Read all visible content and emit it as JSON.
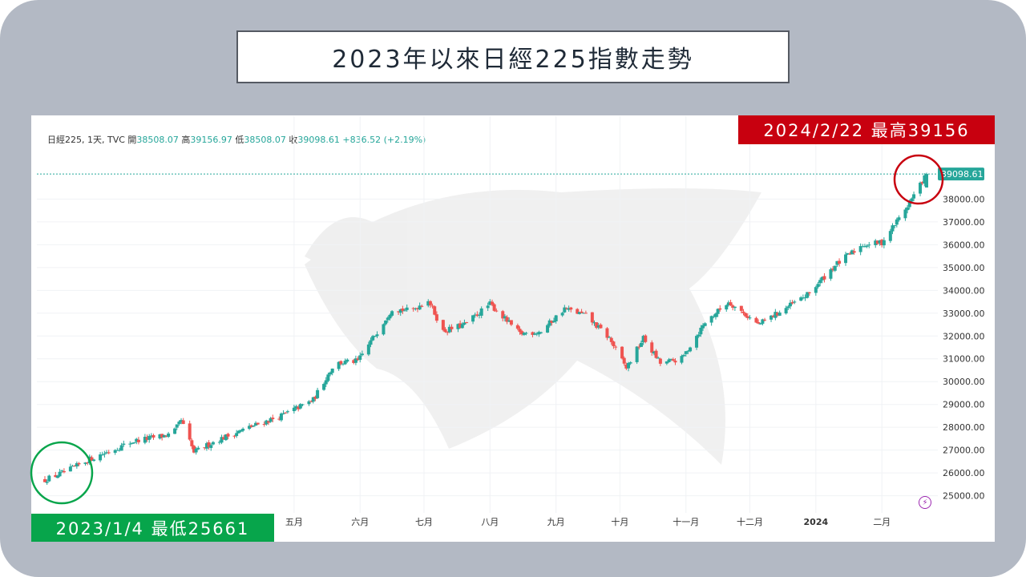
{
  "title": "2023年以來日經225指數走勢",
  "header": {
    "symbol": "日經225, 1天, TVC",
    "open_label": "開",
    "open_value": "38508.07",
    "high_label": "高",
    "high_value": "39156.97",
    "low_label": "低",
    "low_value": "38508.07",
    "close_label": "收",
    "close_value": "39098.61",
    "change": "+836.52 (+2.19%)"
  },
  "annotations": {
    "high": "2024/2/22 最高39156",
    "low": "2023/1/4 最低25661"
  },
  "colors": {
    "up": "#26a69a",
    "down": "#ef5350",
    "high_badge": "#c8000f",
    "low_badge": "#07a54b",
    "highlight_high": "#c8000f",
    "highlight_low": "#07a54b"
  },
  "icons": {
    "flash": "lightning-icon"
  },
  "chart_data": {
    "type": "candlestick",
    "last_price_label": "39098.61",
    "y_ticks": [
      "25000.00",
      "26000.00",
      "27000.00",
      "28000.00",
      "29000.00",
      "30000.00",
      "31000.00",
      "32000.00",
      "33000.00",
      "34000.00",
      "35000.00",
      "36000.00",
      "37000.00",
      "38000.00"
    ],
    "ylim": [
      24600,
      39700
    ],
    "x_ticks": [
      "五月",
      "六月",
      "七月",
      "八月",
      "九月",
      "十月",
      "十一月",
      "十二月",
      "2024",
      "二月"
    ],
    "x_tick_bold": "2024",
    "close_path_dates": [
      "2023-01-04",
      "2023-01-15",
      "2023-01-25",
      "2023-02-15",
      "2023-03-05",
      "2023-03-09",
      "2023-03-15",
      "2023-03-25",
      "2023-04-10",
      "2023-04-25",
      "2023-05-10",
      "2023-05-20",
      "2023-05-31",
      "2023-06-16",
      "2023-06-25",
      "2023-07-03",
      "2023-07-10",
      "2023-07-20",
      "2023-08-01",
      "2023-08-15",
      "2023-08-25",
      "2023-09-05",
      "2023-09-15",
      "2023-09-26",
      "2023-10-04",
      "2023-10-12",
      "2023-10-20",
      "2023-10-30",
      "2023-11-10",
      "2023-11-21",
      "2023-12-05",
      "2023-12-14",
      "2023-12-28",
      "2024-01-10",
      "2024-01-23",
      "2024-02-01",
      "2024-02-13",
      "2024-02-22"
    ],
    "close_path": [
      25700,
      26100,
      26600,
      27400,
      27700,
      28300,
      26900,
      27400,
      28000,
      28500,
      29200,
      30800,
      30900,
      33200,
      33100,
      33600,
      32200,
      32500,
      33400,
      32100,
      32200,
      33200,
      32900,
      31900,
      30600,
      31900,
      30800,
      31000,
      32600,
      33500,
      32500,
      33000,
      33800,
      35100,
      36000,
      36100,
      37700,
      39100
    ],
    "range_high": 39157,
    "range_low": 25661
  }
}
